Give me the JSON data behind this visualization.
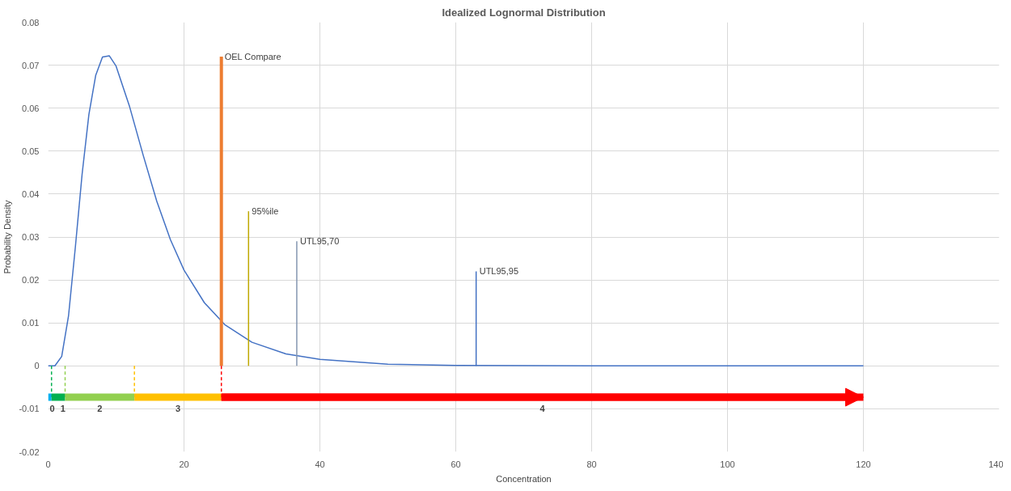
{
  "chart_data": {
    "type": "line",
    "title": "Idealized Lognormal Distribution",
    "xlabel": "Concentration",
    "ylabel": "Probability Density",
    "xlim": [
      0,
      140
    ],
    "xticks": [
      0,
      20,
      40,
      60,
      80,
      100,
      120,
      140
    ],
    "ylim": [
      -0.02,
      0.08
    ],
    "yticks": [
      -0.02,
      -0.01,
      0,
      0.01,
      0.02,
      0.03,
      0.04,
      0.05,
      0.06,
      0.07,
      0.08
    ],
    "grid": true,
    "marker": "none",
    "series": [
      {
        "color": "#4472c4",
        "x": [
          0,
          1,
          2,
          3,
          4,
          5,
          6,
          7,
          8,
          9,
          10,
          12,
          14,
          16,
          18,
          20,
          23,
          26,
          30,
          35,
          40,
          50,
          60,
          80,
          100,
          120
        ],
        "values": [
          0,
          0,
          0.0022,
          0.0116,
          0.0275,
          0.0446,
          0.0585,
          0.0676,
          0.0719,
          0.0722,
          0.0698,
          0.0603,
          0.049,
          0.0383,
          0.0294,
          0.0223,
          0.0147,
          0.0096,
          0.0055,
          0.0028,
          0.0015,
          0.0004,
          0.0001,
          0,
          0,
          0
        ]
      },
      {
        "color": "#ed7d31",
        "x": [
          25.5,
          25.5
        ],
        "values": [
          0,
          0.072
        ]
      },
      {
        "color": "#bfa800",
        "x": [
          29.5,
          29.5
        ],
        "values": [
          0,
          0.036
        ]
      },
      {
        "color": "#8496b0",
        "x": [
          36.6,
          36.6
        ],
        "values": [
          0,
          0.029
        ]
      },
      {
        "color": "#4472c4",
        "x": [
          63,
          63
        ],
        "values": [
          0,
          0.022
        ]
      },
      {
        "color": "#00b050",
        "x": [
          0.5,
          0.5
        ],
        "values": [
          0,
          -0.0073
        ],
        "line_style": "dashed"
      },
      {
        "color": "#92d050",
        "x": [
          2.5,
          2.5
        ],
        "values": [
          0,
          -0.0073
        ],
        "line_style": "dashed"
      },
      {
        "color": "#ffc000",
        "x": [
          12.7,
          12.7
        ],
        "values": [
          0,
          -0.0073
        ],
        "line_style": "dashed"
      },
      {
        "color": "#ff0000",
        "x": [
          25.5,
          25.5
        ],
        "values": [
          0,
          -0.0073
        ],
        "line_style": "dashed"
      },
      {
        "color": "#00b0f0",
        "x": [
          0,
          0.5
        ],
        "values": [
          -0.0073,
          -0.0073
        ]
      },
      {
        "color": "#00b050",
        "x": [
          0.5,
          2.5
        ],
        "values": [
          -0.0073,
          -0.0073
        ]
      },
      {
        "color": "#92d050",
        "x": [
          2.5,
          12.7
        ],
        "values": [
          -0.0073,
          -0.0073
        ]
      },
      {
        "color": "#ffc000",
        "x": [
          12.7,
          25.5
        ],
        "values": [
          -0.0073,
          -0.0073
        ]
      },
      {
        "color": "#ff0000",
        "x": [
          25.5,
          120
        ],
        "values": [
          -0.0073,
          -0.0073
        ]
      }
    ],
    "annotations": [
      {
        "text": "OEL Compare",
        "x": 25.5,
        "y": 0.072
      },
      {
        "text": "95%ile",
        "x": 29.5,
        "y": 0.036
      },
      {
        "text": "UTL95,70",
        "x": 36.6,
        "y": 0.029
      },
      {
        "text": "UTL95,95",
        "x": 63,
        "y": 0.022
      },
      "0",
      "1",
      "2",
      "3",
      "4"
    ]
  }
}
